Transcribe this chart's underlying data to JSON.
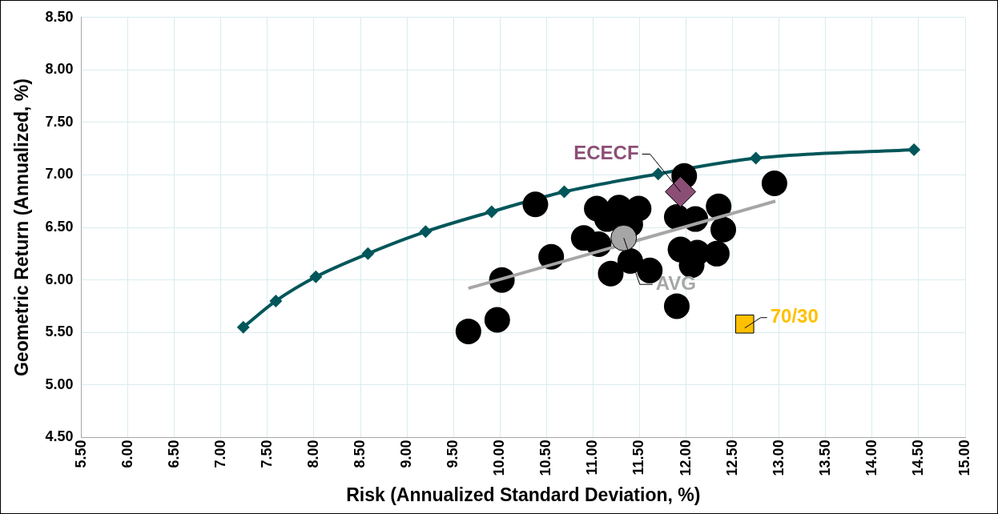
{
  "chart_data": {
    "type": "scatter",
    "xlabel": "Risk (Annualized Standard Deviation, %)",
    "ylabel": "Geometric Return (Annualized, %)",
    "xlim": [
      5.5,
      15
    ],
    "xticks": [
      {
        "value": 5.5,
        "label": "5.50"
      },
      {
        "value": 6,
        "label": "6.00"
      },
      {
        "value": 6.5,
        "label": "6.50"
      },
      {
        "value": 7,
        "label": "7.00"
      },
      {
        "value": 7.5,
        "label": "7.50"
      },
      {
        "value": 8,
        "label": "8.00"
      },
      {
        "value": 8.5,
        "label": "8.50"
      },
      {
        "value": 9,
        "label": "9.00"
      },
      {
        "value": 9.5,
        "label": "9.50"
      },
      {
        "value": 10,
        "label": "10.00"
      },
      {
        "value": 10.5,
        "label": "10.50"
      },
      {
        "value": 11,
        "label": "11.00"
      },
      {
        "value": 11.5,
        "label": "11.50"
      },
      {
        "value": 12,
        "label": "12.00"
      },
      {
        "value": 12.5,
        "label": "12.50"
      },
      {
        "value": 13,
        "label": "13.00"
      },
      {
        "value": 13.5,
        "label": "13.50"
      },
      {
        "value": 14,
        "label": "14.00"
      },
      {
        "value": 14.5,
        "label": "14.50"
      },
      {
        "value": 15,
        "label": "15.00"
      }
    ],
    "ylim": [
      4.5,
      8.5
    ],
    "yticks": [
      {
        "value": 4.5,
        "label": "4.50"
      },
      {
        "value": 5,
        "label": "5.00"
      },
      {
        "value": 5.5,
        "label": "5.50"
      },
      {
        "value": 6,
        "label": "6.00"
      },
      {
        "value": 6.5,
        "label": "6.50"
      },
      {
        "value": 7,
        "label": "7.00"
      },
      {
        "value": 7.5,
        "label": "7.50"
      },
      {
        "value": 8,
        "label": "8.00"
      },
      {
        "value": 8.5,
        "label": "8.50"
      }
    ],
    "grid": true,
    "series": [
      {
        "type": "line",
        "marker": "diamond",
        "color": "#00565a",
        "x": [
          7.24,
          7.59,
          8.02,
          8.58,
          9.2,
          9.91,
          10.69,
          11.7,
          12.75,
          14.45
        ],
        "values": [
          5.55,
          5.8,
          6.03,
          6.25,
          6.46,
          6.65,
          6.84,
          7.01,
          7.16,
          7.24
        ]
      },
      {
        "type": "scatter",
        "marker": "circle",
        "color": "#000000",
        "x": [
          10.38,
          11.98,
          12.95,
          12.35,
          11.04,
          11.28,
          11.49,
          10.9,
          11.9,
          12.1,
          12.4,
          11.94,
          12.12,
          12.33,
          12.06,
          11.4,
          11.19,
          11.61,
          10.55,
          10.02,
          9.97,
          9.66,
          11.9,
          11.15,
          11.4,
          11.06
        ],
        "values": [
          6.72,
          6.99,
          6.92,
          6.7,
          6.68,
          6.69,
          6.68,
          6.4,
          6.6,
          6.58,
          6.48,
          6.29,
          6.26,
          6.25,
          6.14,
          6.18,
          6.06,
          6.09,
          6.22,
          6.0,
          5.62,
          5.51,
          5.75,
          6.58,
          6.53,
          6.34
        ]
      },
      {
        "type": "line",
        "marker": "none",
        "color": "#a6a6a6",
        "x": [
          9.66,
          12.96
        ],
        "values": [
          5.92,
          6.75
        ]
      },
      {
        "type": "scatter",
        "marker": "circle",
        "name": "AVG",
        "color": "#a6a6a6",
        "x": [
          11.33
        ],
        "values": [
          6.4
        ]
      },
      {
        "type": "scatter",
        "marker": "diamond",
        "name": "ECECF",
        "color": "#8b4f75",
        "x": [
          11.94
        ],
        "values": [
          6.84
        ]
      },
      {
        "type": "scatter",
        "marker": "square",
        "name": "70/30",
        "color": "#ffc000",
        "x": [
          12.63
        ],
        "values": [
          5.58
        ]
      }
    ]
  }
}
